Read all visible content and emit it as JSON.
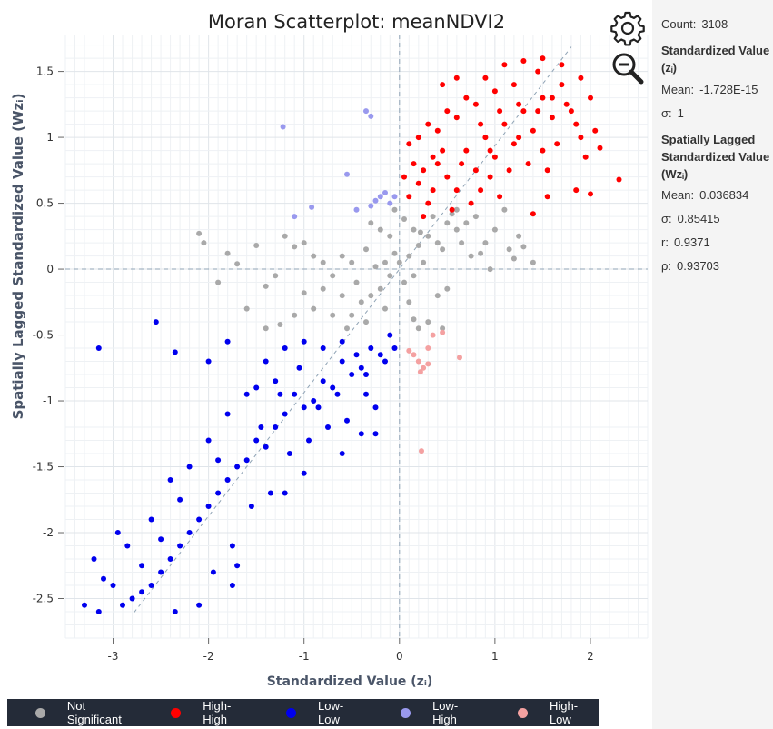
{
  "chart_data": {
    "type": "scatter",
    "title": "Moran Scatterplot: meanNDVI2",
    "xlabel": "Standardized Value (zᵢ)",
    "ylabel": "Spatially Lagged Standardized Value (Wzᵢ)",
    "xlim": [
      -3.5,
      2.6
    ],
    "ylim": [
      -2.8,
      1.78
    ],
    "x_ticks": [
      -3,
      -2,
      -1,
      0,
      1,
      2
    ],
    "y_ticks": [
      -2.5,
      -2,
      -1.5,
      -1,
      -0.5,
      0,
      0.5,
      1,
      1.5
    ],
    "x_tick_labels": [
      "-3",
      "-2",
      "-1",
      "0",
      "1",
      "2"
    ],
    "y_tick_labels": [
      "-2.5",
      "-2",
      "-1.5",
      "-1",
      "-0.5",
      "0",
      "0.5",
      "1",
      "1.5"
    ],
    "grid": true,
    "legend_position": "bottom",
    "regression_slope": 0.9371,
    "series": [
      {
        "name": "Not Significant",
        "color": "#a9a9a9",
        "points": [
          [
            0.0,
            0.05
          ],
          [
            0.1,
            0.1
          ],
          [
            -0.1,
            -0.05
          ],
          [
            0.2,
            0.18
          ],
          [
            -0.2,
            -0.15
          ],
          [
            0.05,
            -0.1
          ],
          [
            -0.05,
            0.12
          ],
          [
            0.3,
            0.25
          ],
          [
            -0.3,
            -0.2
          ],
          [
            0.15,
            0.3
          ],
          [
            -0.15,
            -0.3
          ],
          [
            0.4,
            0.2
          ],
          [
            -0.4,
            -0.25
          ],
          [
            0.25,
            0.05
          ],
          [
            -0.25,
            0.02
          ],
          [
            0.35,
            0.4
          ],
          [
            -0.35,
            -0.4
          ],
          [
            0.5,
            0.35
          ],
          [
            -0.5,
            -0.35
          ],
          [
            0.45,
            0.15
          ],
          [
            -0.45,
            -0.1
          ],
          [
            0.6,
            0.3
          ],
          [
            -0.6,
            -0.2
          ],
          [
            0.55,
            0.42
          ],
          [
            -0.55,
            -0.45
          ],
          [
            0.1,
            -0.25
          ],
          [
            -0.1,
            0.25
          ],
          [
            0.7,
            0.35
          ],
          [
            0.8,
            0.4
          ],
          [
            0.9,
            0.2
          ],
          [
            1.0,
            0.3
          ],
          [
            1.25,
            0.25
          ],
          [
            1.3,
            0.17
          ],
          [
            1.15,
            0.15
          ],
          [
            1.4,
            0.05
          ],
          [
            -0.7,
            -0.05
          ],
          [
            -0.8,
            0.05
          ],
          [
            -0.9,
            0.1
          ],
          [
            -1.0,
            0.2
          ],
          [
            -1.2,
            0.25
          ],
          [
            -1.5,
            0.18
          ],
          [
            -1.8,
            0.12
          ],
          [
            -2.1,
            0.27
          ],
          [
            -2.05,
            0.2
          ],
          [
            -1.7,
            0.04
          ],
          [
            -1.9,
            -0.1
          ],
          [
            -1.4,
            -0.13
          ],
          [
            -1.3,
            -0.05
          ],
          [
            -1.1,
            0.17
          ],
          [
            -1.0,
            -0.18
          ],
          [
            -0.9,
            -0.3
          ],
          [
            -0.7,
            -0.35
          ],
          [
            -1.25,
            -0.42
          ],
          [
            -1.4,
            -0.45
          ],
          [
            0.15,
            -0.38
          ],
          [
            0.2,
            -0.45
          ],
          [
            0.3,
            -0.4
          ],
          [
            0.45,
            -0.45
          ],
          [
            -0.2,
            0.3
          ],
          [
            -0.3,
            0.35
          ],
          [
            -0.35,
            0.15
          ],
          [
            0.6,
            0.45
          ],
          [
            0.65,
            0.2
          ],
          [
            0.75,
            0.1
          ],
          [
            0.05,
            0.38
          ],
          [
            -0.05,
            0.45
          ],
          [
            -0.6,
            0.1
          ],
          [
            -0.5,
            0.05
          ],
          [
            0.4,
            -0.2
          ],
          [
            0.5,
            -0.15
          ],
          [
            1.1,
            0.45
          ],
          [
            -1.6,
            -0.3
          ],
          [
            -1.1,
            -0.35
          ],
          [
            -0.8,
            -0.15
          ],
          [
            0.85,
            0.12
          ],
          [
            1.2,
            0.08
          ],
          [
            0.95,
            0.0
          ],
          [
            -0.15,
            0.05
          ],
          [
            0.15,
            -0.05
          ],
          [
            0.22,
            0.28
          ]
        ]
      },
      {
        "name": "High-High",
        "color": "#ff0000",
        "points": [
          [
            0.1,
            0.55
          ],
          [
            0.2,
            0.65
          ],
          [
            0.3,
            0.5
          ],
          [
            0.4,
            0.8
          ],
          [
            0.5,
            0.7
          ],
          [
            0.6,
            0.6
          ],
          [
            0.7,
            0.9
          ],
          [
            0.8,
            0.75
          ],
          [
            0.9,
            1.0
          ],
          [
            1.0,
            0.85
          ],
          [
            1.1,
            1.1
          ],
          [
            1.2,
            0.95
          ],
          [
            1.3,
            1.2
          ],
          [
            1.4,
            1.05
          ],
          [
            1.5,
            1.3
          ],
          [
            1.6,
            1.15
          ],
          [
            1.7,
            1.4
          ],
          [
            1.8,
            1.2
          ],
          [
            1.9,
            1.0
          ],
          [
            2.0,
            1.3
          ],
          [
            1.45,
            1.5
          ],
          [
            1.3,
            1.58
          ],
          [
            1.2,
            1.4
          ],
          [
            1.0,
            1.35
          ],
          [
            0.8,
            1.25
          ],
          [
            0.6,
            1.15
          ],
          [
            0.4,
            1.05
          ],
          [
            0.3,
            1.1
          ],
          [
            0.5,
            1.2
          ],
          [
            0.7,
            1.3
          ],
          [
            0.9,
            1.45
          ],
          [
            1.1,
            1.55
          ],
          [
            1.25,
            1.0
          ],
          [
            1.35,
            0.8
          ],
          [
            1.5,
            0.9
          ],
          [
            1.55,
            0.75
          ],
          [
            1.65,
            0.95
          ],
          [
            1.75,
            1.25
          ],
          [
            0.45,
            1.4
          ],
          [
            0.6,
            1.45
          ],
          [
            0.2,
            1.0
          ],
          [
            0.35,
            0.85
          ],
          [
            0.15,
            0.8
          ],
          [
            0.05,
            0.7
          ],
          [
            0.25,
            0.4
          ],
          [
            0.55,
            0.45
          ],
          [
            0.75,
            0.5
          ],
          [
            0.85,
            0.6
          ],
          [
            0.95,
            0.7
          ],
          [
            1.05,
            0.55
          ],
          [
            1.15,
            0.75
          ],
          [
            1.45,
            1.2
          ],
          [
            1.6,
            1.3
          ],
          [
            1.85,
            1.1
          ],
          [
            1.95,
            0.85
          ],
          [
            2.05,
            1.05
          ],
          [
            2.3,
            0.68
          ],
          [
            2.1,
            0.92
          ],
          [
            1.85,
            0.6
          ],
          [
            2.0,
            0.57
          ],
          [
            1.55,
            0.55
          ],
          [
            1.4,
            0.42
          ],
          [
            0.35,
            0.6
          ],
          [
            0.65,
            0.8
          ],
          [
            0.95,
            0.9
          ],
          [
            1.25,
            1.25
          ],
          [
            1.7,
            1.55
          ],
          [
            1.5,
            1.6
          ],
          [
            1.9,
            1.45
          ],
          [
            0.85,
            1.1
          ],
          [
            1.05,
            1.2
          ],
          [
            0.45,
            0.9
          ],
          [
            0.1,
            0.95
          ],
          [
            0.25,
            0.75
          ]
        ]
      },
      {
        "name": "Low-Low",
        "color": "#0000ee",
        "points": [
          [
            -0.1,
            -0.5
          ],
          [
            -0.2,
            -0.65
          ],
          [
            -0.3,
            -0.6
          ],
          [
            -0.4,
            -0.75
          ],
          [
            -0.5,
            -0.8
          ],
          [
            -0.6,
            -0.7
          ],
          [
            -0.7,
            -0.9
          ],
          [
            -0.8,
            -0.85
          ],
          [
            -0.9,
            -1.0
          ],
          [
            -1.0,
            -1.05
          ],
          [
            -1.1,
            -0.95
          ],
          [
            -1.2,
            -1.1
          ],
          [
            -1.3,
            -1.2
          ],
          [
            -1.4,
            -1.35
          ],
          [
            -1.5,
            -1.3
          ],
          [
            -1.6,
            -1.45
          ],
          [
            -1.7,
            -1.5
          ],
          [
            -1.8,
            -1.6
          ],
          [
            -1.9,
            -1.7
          ],
          [
            -2.0,
            -1.8
          ],
          [
            -2.1,
            -1.9
          ],
          [
            -2.2,
            -2.0
          ],
          [
            -2.3,
            -2.1
          ],
          [
            -2.4,
            -2.2
          ],
          [
            -2.5,
            -2.3
          ],
          [
            -2.6,
            -2.4
          ],
          [
            -2.7,
            -2.45
          ],
          [
            -2.8,
            -2.5
          ],
          [
            -2.9,
            -2.55
          ],
          [
            -3.0,
            -2.4
          ],
          [
            -3.1,
            -2.35
          ],
          [
            -3.2,
            -2.2
          ],
          [
            -3.3,
            -2.55
          ],
          [
            -3.15,
            -2.6
          ],
          [
            -2.95,
            -2.0
          ],
          [
            -2.85,
            -2.1
          ],
          [
            -2.6,
            -1.9
          ],
          [
            -2.5,
            -2.05
          ],
          [
            -2.4,
            -1.6
          ],
          [
            -2.2,
            -1.5
          ],
          [
            -2.0,
            -1.3
          ],
          [
            -1.8,
            -1.1
          ],
          [
            -1.6,
            -0.95
          ],
          [
            -1.4,
            -0.7
          ],
          [
            -1.5,
            -0.9
          ],
          [
            -1.2,
            -0.6
          ],
          [
            -1.0,
            -0.55
          ],
          [
            -0.8,
            -0.6
          ],
          [
            -0.6,
            -0.55
          ],
          [
            -1.15,
            -1.4
          ],
          [
            -0.95,
            -1.3
          ],
          [
            -0.75,
            -1.2
          ],
          [
            -0.55,
            -1.15
          ],
          [
            -0.35,
            -0.95
          ],
          [
            -0.25,
            -1.05
          ],
          [
            -1.35,
            -1.7
          ],
          [
            -1.55,
            -1.8
          ],
          [
            -1.75,
            -2.1
          ],
          [
            -1.95,
            -2.3
          ],
          [
            -2.1,
            -2.55
          ],
          [
            -2.35,
            -2.6
          ],
          [
            -1.7,
            -2.25
          ],
          [
            -1.75,
            -2.4
          ],
          [
            -3.15,
            -0.6
          ],
          [
            -2.55,
            -0.4
          ],
          [
            -2.35,
            -0.63
          ],
          [
            -2.0,
            -0.7
          ],
          [
            -1.8,
            -0.55
          ],
          [
            -1.3,
            -0.85
          ],
          [
            -1.05,
            -0.75
          ],
          [
            -0.85,
            -1.05
          ],
          [
            -0.65,
            -0.95
          ],
          [
            -0.45,
            -0.65
          ],
          [
            -0.15,
            -0.7
          ],
          [
            -0.05,
            -0.6
          ],
          [
            -0.35,
            -0.8
          ],
          [
            -0.25,
            -1.25
          ],
          [
            -0.4,
            -1.25
          ],
          [
            -1.2,
            -1.7
          ],
          [
            -1.0,
            -1.55
          ],
          [
            -0.6,
            -1.4
          ],
          [
            -2.7,
            -2.25
          ],
          [
            -2.3,
            -1.75
          ],
          [
            -1.9,
            -1.45
          ],
          [
            -1.45,
            -1.2
          ],
          [
            -1.25,
            -0.95
          ]
        ]
      },
      {
        "name": "Low-High",
        "color": "#9999ee",
        "points": [
          [
            -1.22,
            1.08
          ],
          [
            -0.35,
            1.2
          ],
          [
            -0.3,
            1.16
          ],
          [
            -0.55,
            0.72
          ],
          [
            -1.1,
            0.4
          ],
          [
            -0.92,
            0.47
          ],
          [
            -0.05,
            0.55
          ],
          [
            -0.1,
            0.5
          ],
          [
            -0.15,
            0.58
          ],
          [
            -0.2,
            0.55
          ],
          [
            -0.3,
            0.48
          ],
          [
            -0.45,
            0.45
          ],
          [
            -0.25,
            0.52
          ]
        ]
      },
      {
        "name": "High-Low",
        "color": "#f4a1a1",
        "points": [
          [
            0.23,
            -1.38
          ],
          [
            0.1,
            -0.62
          ],
          [
            0.15,
            -0.65
          ],
          [
            0.2,
            -0.7
          ],
          [
            0.25,
            -0.75
          ],
          [
            0.3,
            -0.6
          ],
          [
            0.35,
            -0.5
          ],
          [
            0.45,
            -0.48
          ],
          [
            0.63,
            -0.67
          ],
          [
            0.22,
            -0.78
          ],
          [
            0.3,
            -0.72
          ]
        ]
      }
    ]
  },
  "legend": {
    "items": [
      {
        "label": "Not Significant",
        "color": "#a9a9a9"
      },
      {
        "label": "High-High",
        "color": "#ff0000"
      },
      {
        "label": "Low-Low",
        "color": "#0000ee"
      },
      {
        "label": "Low-High",
        "color": "#9999ee"
      },
      {
        "label": "High-Low",
        "color": "#f4a1a1"
      }
    ]
  },
  "icons": {
    "settings": "gear-icon",
    "zoom_out": "zoom-out-icon"
  },
  "stats": {
    "count_label": "Count:",
    "count_value": "3108",
    "std_heading": "Standardized Value (zᵢ)",
    "std_mean_label": "Mean:",
    "std_mean_value": "-1.728E-15",
    "std_sigma_label": "σ:",
    "std_sigma_value": "1",
    "lag_heading": "Spatially Lagged Standardized Value (Wzᵢ)",
    "lag_mean_label": "Mean:",
    "lag_mean_value": "0.036834",
    "lag_sigma_label": "σ:",
    "lag_sigma_value": "0.85415",
    "r_label": "r:",
    "r_value": "0.9371",
    "rho_label": "ρ:",
    "rho_value": "0.93703"
  }
}
